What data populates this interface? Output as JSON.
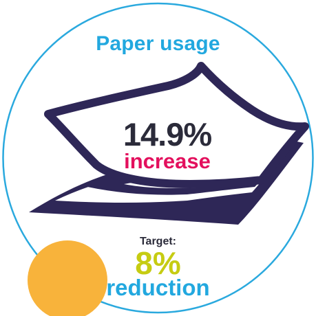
{
  "infographic": {
    "title": "Paper usage",
    "stat_value": "14.9%",
    "stat_label": "increase",
    "target_label": "Target:",
    "target_value": "8%",
    "target_desc": "reduction"
  },
  "icons": {
    "main": "paper-stack-icon",
    "accent": "orange-dot"
  },
  "colors": {
    "ring": "#2aa9de",
    "title": "#22a8df",
    "paper": "#2e2757",
    "stat_value": "#2b2b3a",
    "stat_label": "#e3105d",
    "target_value": "#c6cc12",
    "target_desc": "#22a8df",
    "accent_dot": "#f8b33b"
  }
}
